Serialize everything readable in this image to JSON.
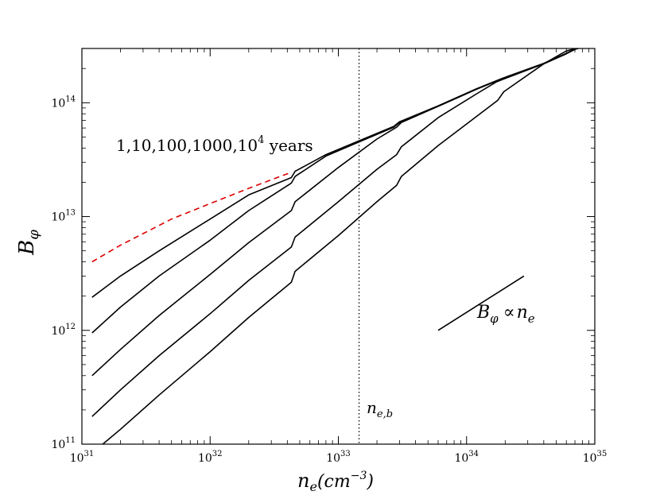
{
  "chart_data": {
    "type": "line",
    "title": "",
    "xlabel": {
      "base": "n",
      "sub": "e",
      "unit": "(cm",
      "unit_exp": "−3",
      "unit_close": ")"
    },
    "ylabel": {
      "base": "B",
      "sub": "φ"
    },
    "xscale": "log",
    "yscale": "log",
    "xlim": [
      1e+31,
      1e+35
    ],
    "ylim": [
      100000000000.0,
      300000000000000.0
    ],
    "x_ticks": [
      {
        "base": "10",
        "exp": "31",
        "value": 1e+31
      },
      {
        "base": "10",
        "exp": "32",
        "value": 1e+32
      },
      {
        "base": "10",
        "exp": "33",
        "value": 1e+33
      },
      {
        "base": "10",
        "exp": "34",
        "value": 1e+34
      },
      {
        "base": "10",
        "exp": "35",
        "value": 1e+35
      }
    ],
    "y_ticks": [
      {
        "base": "10",
        "exp": "11",
        "value": 100000000000.0
      },
      {
        "base": "10",
        "exp": "12",
        "value": 1000000000000.0
      },
      {
        "base": "10",
        "exp": "13",
        "value": 10000000000000.0
      },
      {
        "base": "10",
        "exp": "14",
        "value": 100000000000000.0
      }
    ],
    "grid": false,
    "series": [
      {
        "x": [
          1.2e+31,
          2e+31,
          4e+31,
          1e+32,
          2e+32,
          4.3e+32,
          4.6e+32,
          8e+32,
          1.5e+33,
          2.7e+33,
          3e+33,
          6e+33,
          1.2e+34,
          1.7e+34,
          1.9e+34,
          4e+34,
          6e+34,
          7e+34,
          9e+34
        ],
        "y": [
          1950000000000.0,
          3000000000000.0,
          5000000000000.0,
          9500000000000.0,
          15500000000000.0,
          22000000000000.0,
          25000000000000.0,
          35000000000000.0,
          47000000000000.0,
          62000000000000.0,
          68000000000000.0,
          94000000000000.0,
          133000000000000.0,
          156000000000000.0,
          164000000000000.0,
          222000000000000.0,
          272000000000000.0,
          295000000000000.0,
          320000000000000.0
        ]
      },
      {
        "x": [
          1.2e+31,
          2e+31,
          4e+31,
          1e+32,
          2e+32,
          4.3e+32,
          4.6e+32,
          8e+32,
          1.5e+33,
          2.7e+33,
          3e+33,
          6e+33,
          1.2e+34,
          1.7e+34,
          1.9e+34,
          4e+34,
          6e+34,
          7e+34,
          9e+34
        ],
        "y": [
          950000000000.0,
          1600000000000.0,
          3000000000000.0,
          6200000000000.0,
          11300000000000.0,
          19700000000000.0,
          22500000000000.0,
          34000000000000.0,
          46000000000000.0,
          61000000000000.0,
          67000000000000.0,
          93000000000000.0,
          132000000000000.0,
          155000000000000.0,
          163000000000000.0,
          220000000000000.0,
          270000000000000.0,
          295000000000000.0,
          320000000000000.0
        ]
      },
      {
        "x": [
          1.2e+31,
          2e+31,
          4e+31,
          1e+32,
          2e+32,
          4.3e+32,
          4.6e+32,
          1e+33,
          2e+33,
          2.85e+33,
          3.1e+33,
          6e+33,
          1.2e+34,
          1.7e+34,
          1.9e+34,
          4e+34,
          6e+34,
          7e+34,
          9e+34
        ],
        "y": [
          400000000000.0,
          680000000000.0,
          1350000000000.0,
          3100000000000.0,
          5900000000000.0,
          11300000000000.0,
          13500000000000.0,
          27000000000000.0,
          48000000000000.0,
          61000000000000.0,
          67000000000000.0,
          93000000000000.0,
          132000000000000.0,
          155000000000000.0,
          163000000000000.0,
          220000000000000.0,
          270000000000000.0,
          295000000000000.0,
          320000000000000.0
        ]
      },
      {
        "x": [
          1.2e+31,
          2e+31,
          4e+31,
          1e+32,
          2e+32,
          4.3e+32,
          4.6e+32,
          1e+33,
          2e+33,
          2.85e+33,
          3.1e+33,
          6e+33,
          1.2e+34,
          1.7e+34,
          1.9e+34,
          4e+34,
          6e+34,
          7e+34,
          9e+34
        ],
        "y": [
          175000000000.0,
          300000000000.0,
          600000000000.0,
          1400000000000.0,
          2750000000000.0,
          5400000000000.0,
          6600000000000.0,
          13500000000000.0,
          26000000000000.0,
          35000000000000.0,
          41000000000000.0,
          74000000000000.0,
          120000000000000.0,
          152000000000000.0,
          160000000000000.0,
          220000000000000.0,
          270000000000000.0,
          295000000000000.0,
          320000000000000.0
        ]
      },
      {
        "x": [
          1.3e+31,
          2e+31,
          4e+31,
          1e+32,
          2e+32,
          4.3e+32,
          4.6e+32,
          1e+33,
          2e+33,
          2.85e+33,
          3.1e+33,
          6e+33,
          1.2e+34,
          1.75e+34,
          1.95e+34,
          4e+34,
          5.5e+34,
          6e+34,
          8e+34,
          9.5e+34
        ],
        "y": [
          90000000000.0,
          135000000000.0,
          270000000000.0,
          650000000000.0,
          1300000000000.0,
          2650000000000.0,
          3300000000000.0,
          6800000000000.0,
          13500000000000.0,
          18800000000000.0,
          22500000000000.0,
          42000000000000.0,
          76000000000000.0,
          105000000000000.0,
          125000000000000.0,
          220000000000000.0,
          270000000000000.0,
          285000000000000.0,
          310000000000000.0,
          330000000000000.0
        ]
      }
    ],
    "reference_dashed": {
      "color": "#dd0000",
      "x": [
        1.2e+31,
        2e+31,
        5e+31,
        1e+32,
        2e+32,
        4.3e+32
      ],
      "y": [
        4000000000000.0,
        5600000000000.0,
        9500000000000.0,
        13000000000000.0,
        17700000000000.0,
        24500000000000.0
      ]
    },
    "vertical_line": {
      "x": 1.45e+33,
      "label_base": "n",
      "label_sub": "e,b"
    },
    "slope_line": {
      "x": [
        6e+33,
        2.8e+34
      ],
      "y": [
        1000000000000.0,
        3000000000000.0
      ]
    },
    "slope_label": {
      "lhs": "B",
      "lhs_sub": "φ",
      "relation": "∝",
      "rhs": "n",
      "rhs_sub": "e"
    },
    "age_label": {
      "text": "1,10,100,1000,10",
      "exp": "4",
      "suffix": " years"
    },
    "colors": {
      "curves": "#000000",
      "dashed": "#dd0000",
      "axes": "#000000"
    }
  }
}
